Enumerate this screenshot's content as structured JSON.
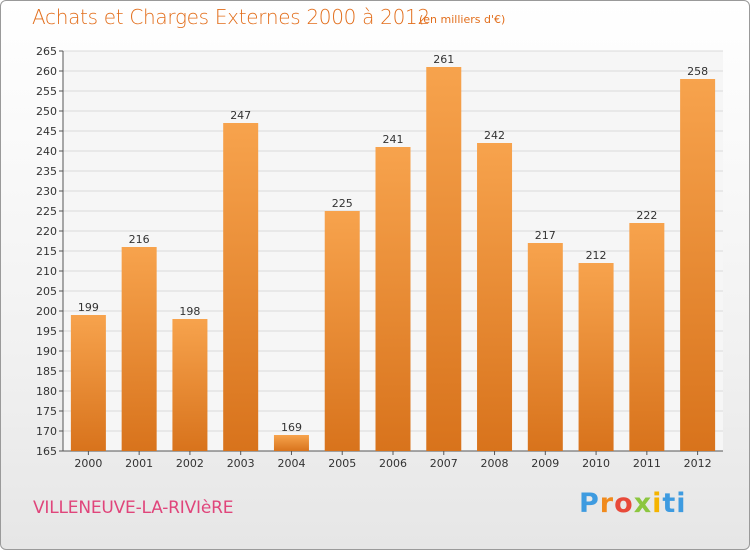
{
  "header": {
    "title": "Achats et Charges Externes 2000 à 2012",
    "subtitle": "(en milliers d'€)"
  },
  "footer": {
    "place": "VILLENEUVE-LA-RIVIèRE",
    "logo_letters": [
      "P",
      "r",
      "o",
      "x",
      "i",
      "ti"
    ]
  },
  "colors": {
    "bar_light": "#f7a34d",
    "bar_dark": "#d8731c",
    "title": "#e26e1c",
    "place": "#e0457b"
  },
  "chart_data": {
    "type": "bar",
    "categories": [
      "2000",
      "2001",
      "2002",
      "2003",
      "2004",
      "2005",
      "2006",
      "2007",
      "2008",
      "2009",
      "2010",
      "2011",
      "2012"
    ],
    "values": [
      199,
      216,
      198,
      247,
      169,
      225,
      241,
      261,
      242,
      217,
      212,
      222,
      258
    ],
    "title": "Achats et Charges Externes 2000 à 2012",
    "xlabel": "",
    "ylabel": "",
    "ylim": [
      165,
      265
    ],
    "yticks": [
      165,
      170,
      175,
      180,
      185,
      190,
      195,
      200,
      205,
      210,
      215,
      220,
      225,
      230,
      235,
      240,
      245,
      250,
      255,
      260,
      265
    ],
    "grid": true,
    "legend": "none"
  }
}
